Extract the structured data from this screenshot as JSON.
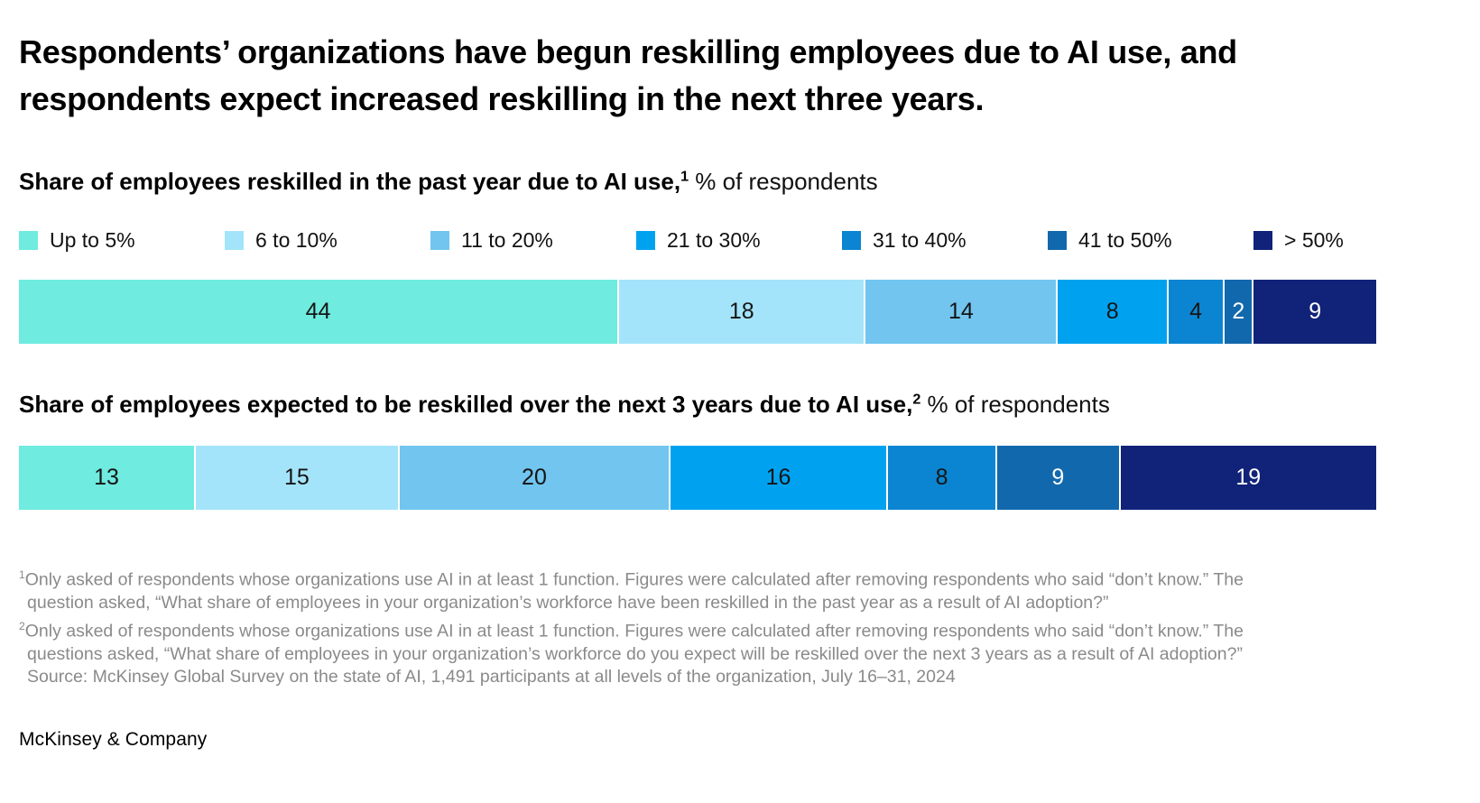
{
  "title": "Respondents’ organizations have begun reskilling employees due to AI use, and respondents expect increased reskilling in the next three years.",
  "colors": {
    "segment_palette": [
      "#6FEBDF",
      "#A4E4FA",
      "#71C5EF",
      "#00A2F0",
      "#0B85D1",
      "#1268AC",
      "#112379"
    ],
    "bar_label_dark": "#151515",
    "bar_label_light": "#ffffff",
    "footnote_gray": "#8a8a8a"
  },
  "legend": {
    "items": [
      {
        "label": "Up to 5%",
        "color": "#6FEBDF"
      },
      {
        "label": "6 to 10%",
        "color": "#A4E4FA"
      },
      {
        "label": "11 to 20%",
        "color": "#71C5EF"
      },
      {
        "label": "21 to 30%",
        "color": "#00A2F0"
      },
      {
        "label": "31 to 40%",
        "color": "#0B85D1"
      },
      {
        "label": "41 to 50%",
        "color": "#1268AC"
      },
      {
        "label": "> 50%",
        "color": "#112379"
      }
    ]
  },
  "chart_data": [
    {
      "type": "bar",
      "orientation": "horizontal-stacked",
      "title": "Share of employees reskilled in the past year due to AI use,",
      "title_sup": "1",
      "title_suffix": " % of respondents",
      "categories": [
        "Up to 5%",
        "6 to 10%",
        "11 to 20%",
        "21 to 30%",
        "31 to 40%",
        "41 to 50%",
        "> 50%"
      ],
      "values": [
        44,
        18,
        14,
        8,
        4,
        2,
        9
      ],
      "label_colors": [
        "dark",
        "dark",
        "dark",
        "dark",
        "dark",
        "light",
        "light"
      ],
      "legend_position": "top",
      "grid": false
    },
    {
      "type": "bar",
      "orientation": "horizontal-stacked",
      "title": "Share of employees expected to be reskilled over the next 3 years due to AI use,",
      "title_sup": "2",
      "title_suffix": " % of respondents",
      "categories": [
        "Up to 5%",
        "6 to 10%",
        "11 to 20%",
        "21 to 30%",
        "31 to 40%",
        "41 to 50%",
        "> 50%"
      ],
      "values": [
        13,
        15,
        20,
        16,
        8,
        9,
        19
      ],
      "label_colors": [
        "dark",
        "dark",
        "dark",
        "dark",
        "dark",
        "light",
        "light"
      ],
      "legend_position": "shared-top",
      "grid": false
    }
  ],
  "footnotes": [
    {
      "sup": "1",
      "line1": "Only asked of respondents whose organizations use AI in at least 1 function. Figures were calculated after removing respondents who said “don’t know.” The",
      "line2": "question asked, “What share of employees in your organization’s workforce have been reskilled in the past year as a result of AI adoption?”"
    },
    {
      "sup": "2",
      "line1": "Only asked of respondents whose organizations use AI in at least 1 function. Figures were calculated after removing respondents who said “don’t know.” The",
      "line2": "questions asked, “What share of employees in your organization’s workforce do you expect will be reskilled over the next 3 years as a result of AI adoption?”"
    }
  ],
  "source": "Source: McKinsey Global Survey on the state of AI, 1,491 participants at all levels of the organization, July 16–31, 2024",
  "footer": "McKinsey & Company"
}
